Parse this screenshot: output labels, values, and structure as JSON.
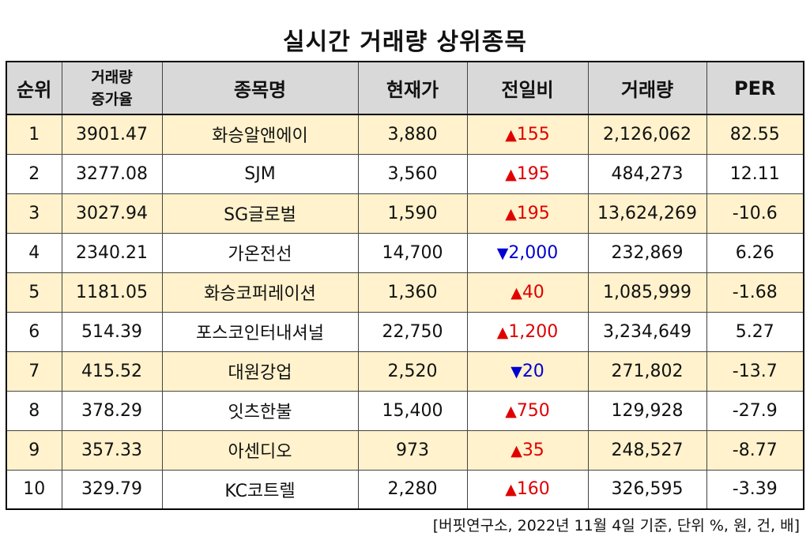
{
  "title": "실시간 거래량 상위종목",
  "headers": {
    "rank": "순위",
    "increase_line1": "거래량",
    "increase_line2": "증가율",
    "name": "종목명",
    "price": "현재가",
    "change": "전일비",
    "volume": "거래량",
    "per": "PER"
  },
  "colors": {
    "header_bg": "#d9d9d9",
    "stripe_bg": "#fff2cc",
    "up": "#e00000",
    "down": "#0000d0"
  },
  "icons": {
    "up": "up-triangle-icon",
    "down": "down-triangle-icon"
  },
  "rows": [
    {
      "rank": "1",
      "increase": "3901.47",
      "name": "화승알앤에이",
      "price": "3,880",
      "dir": "up",
      "change": "155",
      "volume": "2,126,062",
      "per": "82.55"
    },
    {
      "rank": "2",
      "increase": "3277.08",
      "name": "SJM",
      "price": "3,560",
      "dir": "up",
      "change": "195",
      "volume": "484,273",
      "per": "12.11"
    },
    {
      "rank": "3",
      "increase": "3027.94",
      "name": "SG글로벌",
      "price": "1,590",
      "dir": "up",
      "change": "195",
      "volume": "13,624,269",
      "per": "-10.6"
    },
    {
      "rank": "4",
      "increase": "2340.21",
      "name": "가온전선",
      "price": "14,700",
      "dir": "down",
      "change": "2,000",
      "volume": "232,869",
      "per": "6.26"
    },
    {
      "rank": "5",
      "increase": "1181.05",
      "name": "화승코퍼레이션",
      "price": "1,360",
      "dir": "up",
      "change": "40",
      "volume": "1,085,999",
      "per": "-1.68"
    },
    {
      "rank": "6",
      "increase": "514.39",
      "name": "포스코인터내셔널",
      "price": "22,750",
      "dir": "up",
      "change": "1,200",
      "volume": "3,234,649",
      "per": "5.27"
    },
    {
      "rank": "7",
      "increase": "415.52",
      "name": "대원강업",
      "price": "2,520",
      "dir": "down",
      "change": "20",
      "volume": "271,802",
      "per": "-13.7"
    },
    {
      "rank": "8",
      "increase": "378.29",
      "name": "잇츠한불",
      "price": "15,400",
      "dir": "up",
      "change": "750",
      "volume": "129,928",
      "per": "-27.9"
    },
    {
      "rank": "9",
      "increase": "357.33",
      "name": "아센디오",
      "price": "973",
      "dir": "up",
      "change": "35",
      "volume": "248,527",
      "per": "-8.77"
    },
    {
      "rank": "10",
      "increase": "329.79",
      "name": "KC코트렐",
      "price": "2,280",
      "dir": "up",
      "change": "160",
      "volume": "326,595",
      "per": "-3.39"
    }
  ],
  "footnote": "[버핏연구소, 2022년 11월 4일 기준, 단위 %, 원, 건, 배]"
}
